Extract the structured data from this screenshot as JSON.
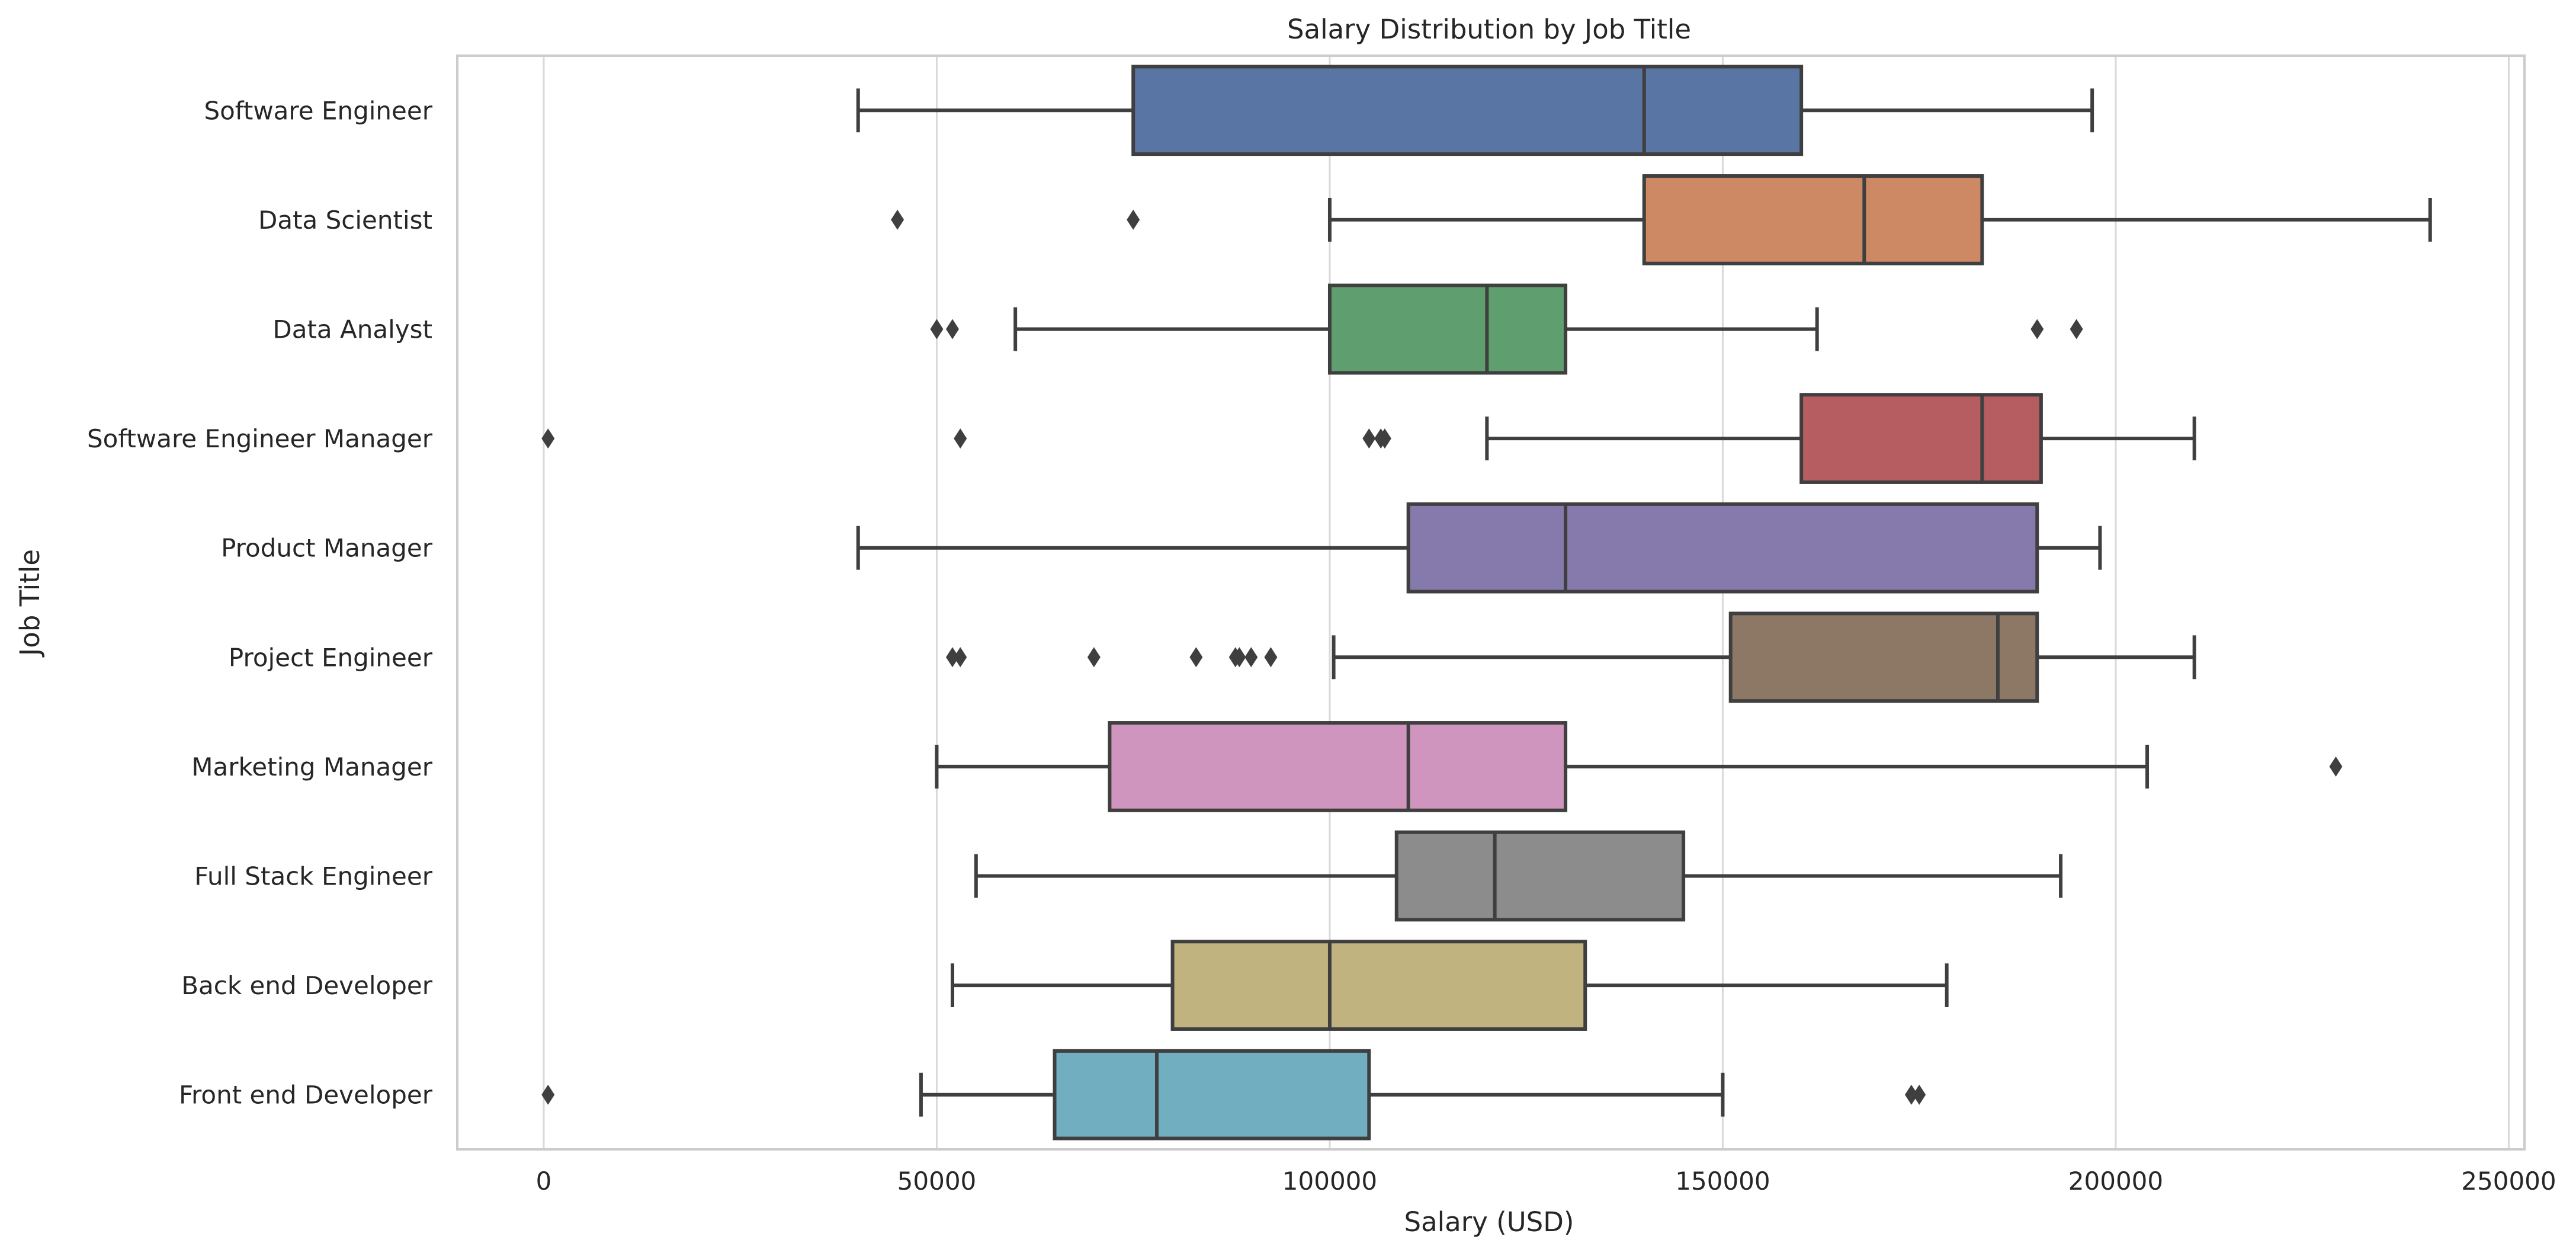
{
  "chart_data": {
    "type": "boxplot",
    "orientation": "horizontal",
    "title": "Salary Distribution by Job Title",
    "xlabel": "Salary (USD)",
    "ylabel": "Job Title",
    "xlim": [
      -11000,
      252000
    ],
    "xticks": [
      0,
      50000,
      100000,
      150000,
      200000,
      250000
    ],
    "xtick_labels": [
      "0",
      "50000",
      "100000",
      "150000",
      "200000",
      "250000"
    ],
    "grid": "vertical",
    "categories": [
      "Software Engineer",
      "Data Scientist",
      "Data Analyst",
      "Software Engineer Manager",
      "Product Manager",
      "Project Engineer",
      "Marketing Manager",
      "Full Stack Engineer",
      "Back end Developer",
      "Front end Developer"
    ],
    "colors": [
      "#5875a4",
      "#cc8963",
      "#5f9e6e",
      "#b55d60",
      "#857aab",
      "#8d7866",
      "#d095bf",
      "#8c8c8c",
      "#c1b37f",
      "#71aec0"
    ],
    "boxes": [
      {
        "whisker_low": 40000,
        "q1": 75000,
        "median": 140000,
        "q3": 160000,
        "whisker_high": 197000,
        "outliers": []
      },
      {
        "whisker_low": 100000,
        "q1": 140000,
        "median": 168000,
        "q3": 183000,
        "whisker_high": 240000,
        "outliers": [
          45000,
          75000
        ]
      },
      {
        "whisker_low": 60000,
        "q1": 100000,
        "median": 120000,
        "q3": 130000,
        "whisker_high": 162000,
        "outliers": [
          50000,
          52000,
          190000,
          195000
        ]
      },
      {
        "whisker_low": 120000,
        "q1": 160000,
        "median": 183000,
        "q3": 190500,
        "whisker_high": 210000,
        "outliers": [
          550,
          53000,
          105000,
          106500,
          107000
        ]
      },
      {
        "whisker_low": 40000,
        "q1": 110000,
        "median": 130000,
        "q3": 190000,
        "whisker_high": 198000,
        "outliers": []
      },
      {
        "whisker_low": 100500,
        "q1": 151000,
        "median": 185000,
        "q3": 190000,
        "whisker_high": 210000,
        "outliers": [
          52000,
          53000,
          70000,
          83000,
          88000,
          88500,
          90000,
          92500
        ]
      },
      {
        "whisker_low": 50000,
        "q1": 72000,
        "median": 110000,
        "q3": 130000,
        "whisker_high": 204000,
        "outliers": [
          228000
        ]
      },
      {
        "whisker_low": 55000,
        "q1": 108500,
        "median": 121000,
        "q3": 145000,
        "whisker_high": 193000,
        "outliers": []
      },
      {
        "whisker_low": 52000,
        "q1": 80000,
        "median": 100000,
        "q3": 132500,
        "whisker_high": 178500,
        "outliers": []
      },
      {
        "whisker_low": 48000,
        "q1": 65000,
        "median": 78000,
        "q3": 105000,
        "whisker_high": 150000,
        "outliers": [
          550,
          174000,
          175000
        ]
      }
    ]
  }
}
